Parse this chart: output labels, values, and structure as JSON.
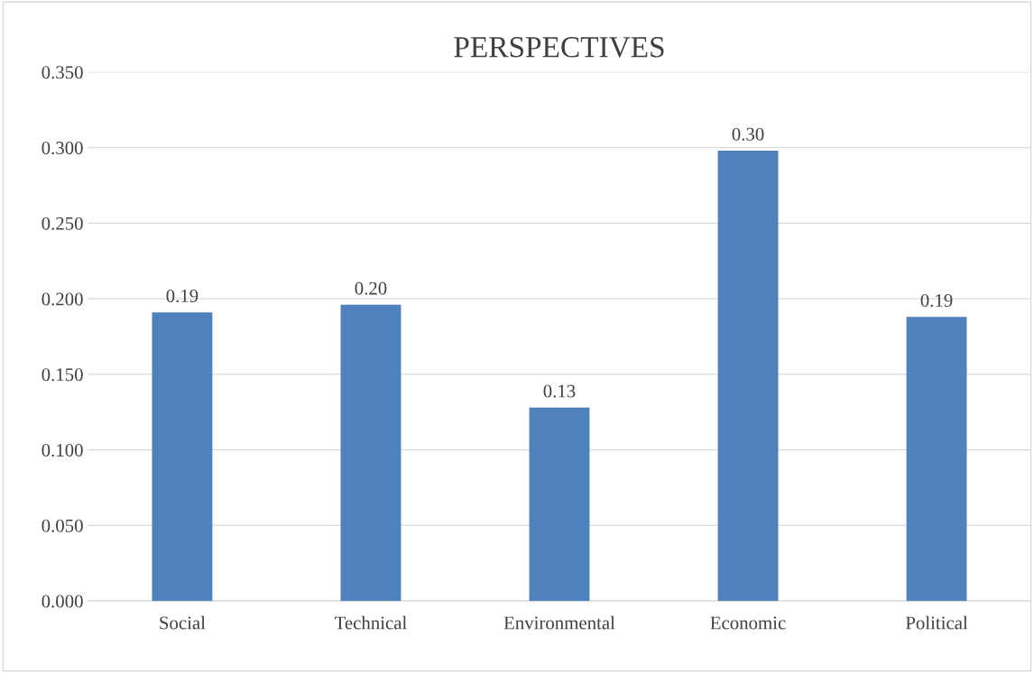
{
  "chart_data": {
    "type": "bar",
    "title": "PERSPECTIVES",
    "categories": [
      "Social",
      "Technical",
      "Environmental",
      "Economic",
      "Political"
    ],
    "values": [
      0.191,
      0.196,
      0.128,
      0.298,
      0.188
    ],
    "value_labels": [
      "0.19",
      "0.20",
      "0.13",
      "0.30",
      "0.19"
    ],
    "color": "#4f81bd",
    "ylim": [
      0,
      0.35
    ],
    "yticks": [
      {
        "value": 0,
        "label": "0.000"
      },
      {
        "value": 0.05,
        "label": "0.050"
      },
      {
        "value": 0.1,
        "label": "0.100"
      },
      {
        "value": 0.15,
        "label": "0.150"
      },
      {
        "value": 0.2,
        "label": "0.200"
      },
      {
        "value": 0.25,
        "label": "0.250"
      },
      {
        "value": 0.3,
        "label": "0.300"
      },
      {
        "value": 0.35,
        "label": "0.350"
      }
    ],
    "grid": "y",
    "legend": false
  }
}
